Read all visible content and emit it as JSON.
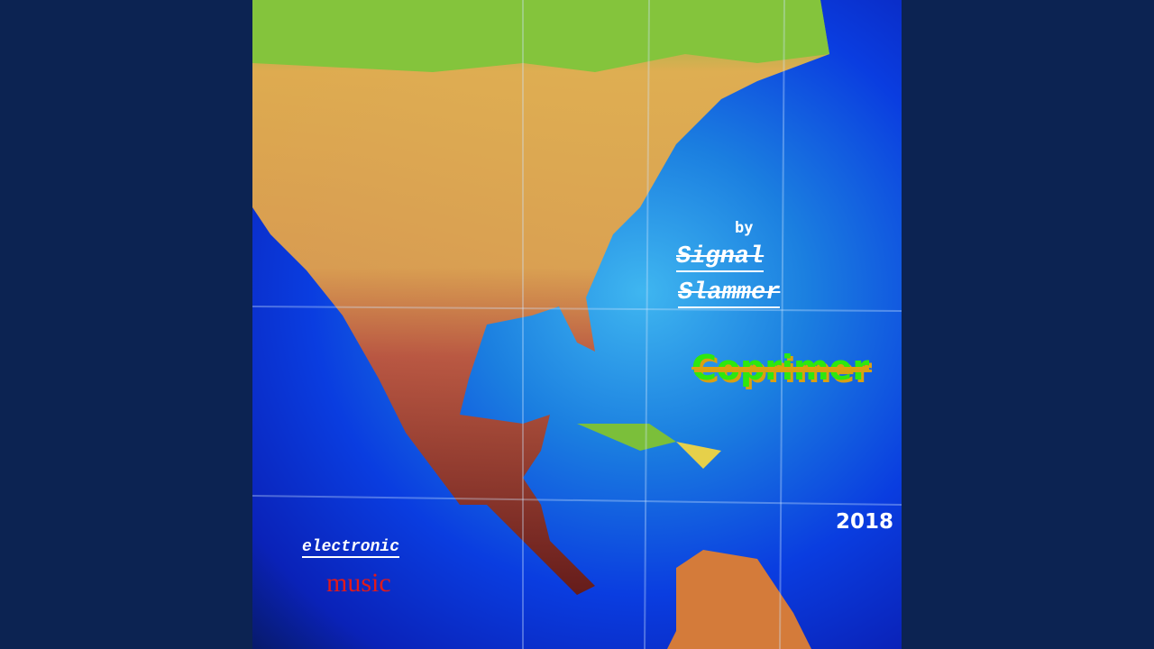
{
  "cover": {
    "by_label": "by",
    "artist_line1": "Signal",
    "artist_line2": "Slammer",
    "title": "Coprimer",
    "year": "2018",
    "genre_line1": "electronic",
    "genre_line2": "music"
  },
  "colors": {
    "frame_background": "#0c2352",
    "title_green": "#2ee80e",
    "title_shadow": "#d9a012",
    "music_red": "#e11a1a"
  }
}
